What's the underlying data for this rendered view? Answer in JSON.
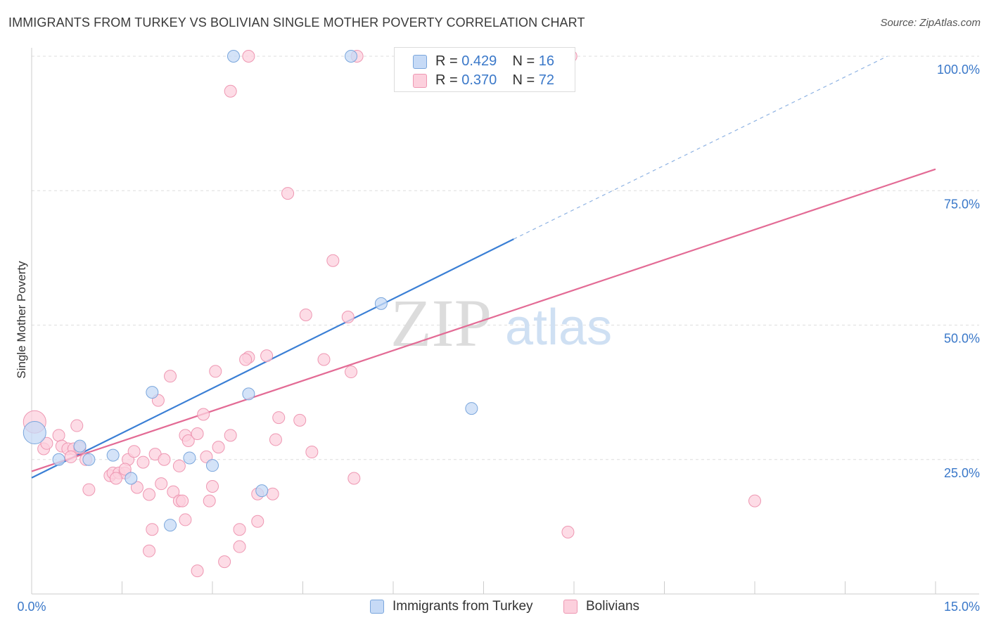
{
  "title": "IMMIGRANTS FROM TURKEY VS BOLIVIAN SINGLE MOTHER POVERTY CORRELATION CHART",
  "source": "Source: ZipAtlas.com",
  "watermark": {
    "zip": "ZIP",
    "atlas": "atlas"
  },
  "legend": {
    "r_label": "R = ",
    "n_label": "N = ",
    "rows": [
      {
        "r": "0.429",
        "n": "16",
        "color": "#a9c8f0",
        "stroke": "#7aa6dc"
      },
      {
        "r": "0.370",
        "n": "72",
        "color": "#f9c4d5",
        "stroke": "#ee97b2"
      }
    ]
  },
  "bottom_legend": [
    {
      "label": "Immigrants from Turkey",
      "color": "#c6daf6",
      "stroke": "#7aa6dc"
    },
    {
      "label": "Bolivians",
      "color": "#fcd0dd",
      "stroke": "#ee97b2"
    }
  ],
  "chart_data": {
    "type": "scatter",
    "title": "IMMIGRANTS FROM TURKEY VS BOLIVIAN SINGLE MOTHER POVERTY CORRELATION CHART",
    "xlabel": "",
    "ylabel": "Single Mother Poverty",
    "xlim": [
      0,
      15
    ],
    "ylim": [
      0,
      100
    ],
    "x_tick_labels": [
      "0.0%",
      "15.0%"
    ],
    "y_tick_labels": [
      "25.0%",
      "50.0%",
      "75.0%",
      "100.0%"
    ],
    "y_ticks": [
      25,
      50,
      75,
      100
    ],
    "grid": true,
    "legend_position": "top-center",
    "series": [
      {
        "name": "Immigrants from Turkey",
        "color": "#3a7fd5",
        "fill": "#c6daf6",
        "trend": {
          "x0": 0,
          "y0": 21.6,
          "x1": 8.0,
          "y1": 66.0,
          "dashed_to_x": 14.2,
          "dashed_to_y": 100
        },
        "points": [
          [
            0.05,
            30.0
          ],
          [
            0.45,
            25.0
          ],
          [
            0.8,
            27.5
          ],
          [
            0.95,
            25.0
          ],
          [
            1.35,
            25.8
          ],
          [
            1.65,
            21.5
          ],
          [
            2.0,
            37.5
          ],
          [
            2.62,
            25.3
          ],
          [
            3.0,
            23.9
          ],
          [
            3.6,
            37.2
          ],
          [
            3.82,
            19.2
          ],
          [
            2.3,
            12.8
          ],
          [
            3.35,
            100
          ],
          [
            5.3,
            100
          ],
          [
            5.8,
            54.0
          ],
          [
            7.3,
            34.5
          ]
        ]
      },
      {
        "name": "Bolivians",
        "color": "#e36b95",
        "fill": "#fcd0dd",
        "trend": {
          "x0": 0,
          "y0": 22.8,
          "x1": 15.0,
          "y1": 79.0
        },
        "points": [
          [
            0.05,
            32.0
          ],
          [
            0.2,
            27.0
          ],
          [
            0.25,
            28.0
          ],
          [
            0.45,
            29.5
          ],
          [
            0.5,
            27.5
          ],
          [
            0.6,
            27.0
          ],
          [
            0.7,
            27.0
          ],
          [
            0.8,
            27.2
          ],
          [
            0.65,
            25.5
          ],
          [
            0.9,
            25.0
          ],
          [
            0.75,
            31.3
          ],
          [
            1.3,
            22.0
          ],
          [
            1.35,
            22.5
          ],
          [
            1.45,
            22.5
          ],
          [
            1.55,
            22.5
          ],
          [
            1.4,
            21.5
          ],
          [
            1.6,
            25.0
          ],
          [
            1.7,
            26.5
          ],
          [
            1.75,
            19.8
          ],
          [
            1.85,
            24.5
          ],
          [
            1.95,
            18.5
          ],
          [
            2.05,
            26.0
          ],
          [
            2.2,
            25.0
          ],
          [
            2.15,
            20.5
          ],
          [
            2.35,
            19.0
          ],
          [
            2.45,
            17.3
          ],
          [
            2.5,
            17.3
          ],
          [
            2.55,
            29.5
          ],
          [
            2.6,
            28.5
          ],
          [
            2.3,
            40.5
          ],
          [
            2.1,
            36.0
          ],
          [
            2.45,
            23.8
          ],
          [
            2.85,
            33.4
          ],
          [
            2.75,
            29.8
          ],
          [
            2.9,
            25.5
          ],
          [
            3.05,
            41.4
          ],
          [
            2.95,
            17.3
          ],
          [
            3.1,
            27.3
          ],
          [
            3.3,
            29.5
          ],
          [
            3.45,
            12.0
          ],
          [
            3.6,
            44.0
          ],
          [
            3.9,
            44.3
          ],
          [
            3.55,
            43.6
          ],
          [
            3.75,
            13.5
          ],
          [
            4.0,
            18.6
          ],
          [
            4.05,
            28.7
          ],
          [
            4.1,
            32.8
          ],
          [
            4.25,
            74.5
          ],
          [
            4.45,
            32.3
          ],
          [
            4.55,
            51.9
          ],
          [
            4.65,
            26.4
          ],
          [
            4.85,
            43.6
          ],
          [
            5.0,
            62.0
          ],
          [
            5.25,
            51.5
          ],
          [
            5.3,
            41.3
          ],
          [
            5.35,
            21.5
          ],
          [
            2.0,
            12.0
          ],
          [
            1.95,
            8.0
          ],
          [
            2.55,
            13.8
          ],
          [
            3.2,
            6.0
          ],
          [
            3.45,
            8.8
          ],
          [
            3.3,
            93.5
          ],
          [
            3.6,
            100
          ],
          [
            5.4,
            100
          ],
          [
            8.95,
            100
          ],
          [
            2.75,
            4.3
          ],
          [
            3.75,
            18.6
          ],
          [
            8.9,
            11.5
          ],
          [
            12.0,
            17.3
          ],
          [
            1.55,
            23.2
          ],
          [
            0.95,
            19.4
          ],
          [
            3.0,
            20.0
          ]
        ]
      }
    ]
  }
}
